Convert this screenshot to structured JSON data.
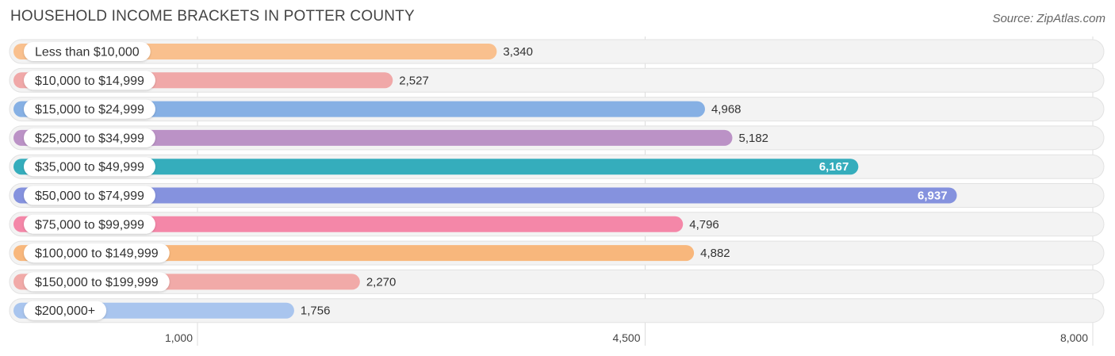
{
  "header": {
    "title": "HOUSEHOLD INCOME BRACKETS IN POTTER COUNTY",
    "source": "Source: ZipAtlas.com"
  },
  "chart_data": {
    "type": "bar",
    "orientation": "horizontal",
    "title": "HOUSEHOLD INCOME BRACKETS IN POTTER COUNTY",
    "categories": [
      "Less than $10,000",
      "$10,000 to $14,999",
      "$15,000 to $24,999",
      "$25,000 to $34,999",
      "$35,000 to $49,999",
      "$50,000 to $74,999",
      "$75,000 to $99,999",
      "$100,000 to $149,999",
      "$150,000 to $199,999",
      "$200,000+"
    ],
    "values": [
      3340,
      2527,
      4968,
      5182,
      6167,
      6937,
      4796,
      4882,
      2270,
      1756
    ],
    "value_labels": [
      "3,340",
      "2,527",
      "4,968",
      "5,182",
      "6,167",
      "6,937",
      "4,796",
      "4,882",
      "2,270",
      "1,756"
    ],
    "colors": [
      "#f9c08e",
      "#f0a8a8",
      "#86b0e4",
      "#bb92c6",
      "#35adbc",
      "#8592de",
      "#f487a8",
      "#f8b77c",
      "#f1aaa8",
      "#a9c5ee"
    ],
    "xticks": [
      1000,
      4500,
      8000
    ],
    "xtick_labels": [
      "1,000",
      "4,500",
      "8,000"
    ],
    "xlim": [
      -500,
      8000
    ],
    "grid": true,
    "xlabel": "",
    "ylabel": ""
  }
}
